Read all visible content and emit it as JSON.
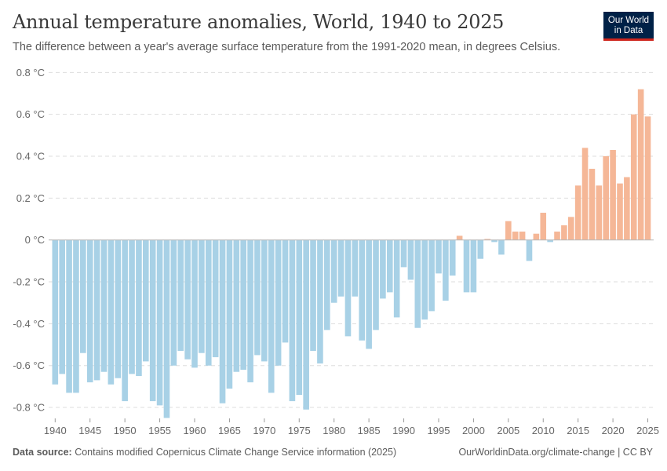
{
  "header": {
    "title": "Annual temperature anomalies, World, 1940 to 2025",
    "subtitle": "The difference between a year's average surface temperature from the 1991-2020 mean, in degrees Celsius.",
    "logo_line1": "Our World",
    "logo_line2": "in Data"
  },
  "footer": {
    "source_label": "Data source:",
    "source_text": " Contains modified Copernicus Climate Change Service information (2025)",
    "right_text": "OurWorldinData.org/climate-change | CC BY"
  },
  "colors": {
    "negative": "#a8d1e6",
    "positive": "#f5b797",
    "logo_bg": "#002147",
    "logo_stripe": "#ce261e"
  },
  "chart_data": {
    "type": "bar",
    "title": "Annual temperature anomalies, World, 1940 to 2025",
    "subtitle": "The difference between a year's average surface temperature from the 1991-2020 mean, in degrees Celsius.",
    "xlabel": "",
    "ylabel": "",
    "unit": "°C",
    "ylim": [
      -0.85,
      0.8
    ],
    "yticks": [
      0.8,
      0.6,
      0.4,
      0.2,
      0,
      -0.2,
      -0.4,
      -0.6,
      -0.8
    ],
    "ytick_labels": [
      "0.8 °C",
      "0.6 °C",
      "0.4 °C",
      "0.2 °C",
      "0 °C",
      "-0.2 °C",
      "-0.4 °C",
      "-0.6 °C",
      "-0.8 °C"
    ],
    "xtick_labels": [
      "1940",
      "1945",
      "1950",
      "1955",
      "1960",
      "1965",
      "1970",
      "1975",
      "1980",
      "1985",
      "1990",
      "1995",
      "2000",
      "2005",
      "2010",
      "2015",
      "2020",
      "2025"
    ],
    "grid": "horizontal-dashed",
    "legend": "none",
    "categories": [
      1940,
      1941,
      1942,
      1943,
      1944,
      1945,
      1946,
      1947,
      1948,
      1949,
      1950,
      1951,
      1952,
      1953,
      1954,
      1955,
      1956,
      1957,
      1958,
      1959,
      1960,
      1961,
      1962,
      1963,
      1964,
      1965,
      1966,
      1967,
      1968,
      1969,
      1970,
      1971,
      1972,
      1973,
      1974,
      1975,
      1976,
      1977,
      1978,
      1979,
      1980,
      1981,
      1982,
      1983,
      1984,
      1985,
      1986,
      1987,
      1988,
      1989,
      1990,
      1991,
      1992,
      1993,
      1994,
      1995,
      1996,
      1997,
      1998,
      1999,
      2000,
      2001,
      2002,
      2003,
      2004,
      2005,
      2006,
      2007,
      2008,
      2009,
      2010,
      2011,
      2012,
      2013,
      2014,
      2015,
      2016,
      2017,
      2018,
      2019,
      2020,
      2021,
      2022,
      2023,
      2024,
      2025
    ],
    "values": [
      -0.69,
      -0.64,
      -0.73,
      -0.73,
      -0.54,
      -0.68,
      -0.67,
      -0.63,
      -0.69,
      -0.66,
      -0.77,
      -0.64,
      -0.65,
      -0.58,
      -0.77,
      -0.79,
      -0.85,
      -0.6,
      -0.53,
      -0.57,
      -0.61,
      -0.54,
      -0.6,
      -0.56,
      -0.78,
      -0.71,
      -0.63,
      -0.62,
      -0.68,
      -0.55,
      -0.58,
      -0.73,
      -0.6,
      -0.49,
      -0.77,
      -0.74,
      -0.81,
      -0.53,
      -0.59,
      -0.43,
      -0.3,
      -0.27,
      -0.46,
      -0.27,
      -0.48,
      -0.52,
      -0.43,
      -0.28,
      -0.25,
      -0.37,
      -0.13,
      -0.19,
      -0.42,
      -0.38,
      -0.34,
      -0.16,
      -0.29,
      -0.17,
      0.02,
      -0.25,
      -0.25,
      -0.09,
      0.005,
      -0.01,
      -0.07,
      0.09,
      0.04,
      0.04,
      -0.1,
      0.03,
      0.13,
      -0.01,
      0.04,
      0.07,
      0.11,
      0.26,
      0.44,
      0.34,
      0.26,
      0.4,
      0.43,
      0.27,
      0.3,
      0.6,
      0.72,
      0.59
    ]
  }
}
